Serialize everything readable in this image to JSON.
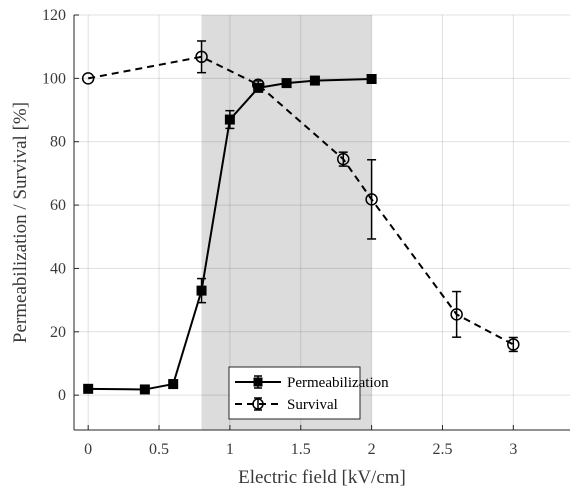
{
  "chart_data": {
    "type": "line",
    "xlabel": "Electric field [kV/cm]",
    "ylabel": "Permeabilization / Survival [%]",
    "xlim": [
      -0.1,
      3.4
    ],
    "ylim": [
      -11,
      120
    ],
    "x_ticks": [
      0,
      0.5,
      1,
      1.5,
      2,
      2.5,
      3
    ],
    "x_tick_labels": [
      "0",
      "0.5",
      "1",
      "1.5",
      "2",
      "2.5",
      "3"
    ],
    "y_ticks": [
      0,
      20,
      40,
      60,
      80,
      100,
      120
    ],
    "y_tick_labels": [
      "0",
      "20",
      "40",
      "60",
      "80",
      "100",
      "120"
    ],
    "grid": true,
    "shaded_region": {
      "x_from": 0.8,
      "x_to": 2.0,
      "color": "#dcdcdc"
    },
    "legend_placement": "bottom-center",
    "series": [
      {
        "name": "Permeabilization",
        "style": "solid",
        "marker": "square-filled",
        "color": "#000000",
        "x": [
          0,
          0.4,
          0.6,
          0.8,
          1.0,
          1.2,
          1.4,
          1.6,
          2.0
        ],
        "y": [
          2,
          1.8,
          3.5,
          33,
          87,
          97,
          98.5,
          99.3,
          99.8
        ],
        "err": [
          0.5,
          0.5,
          0.6,
          3.8,
          2.8,
          1.0,
          0.4,
          0.3,
          0.2
        ]
      },
      {
        "name": "Survival",
        "style": "dashed",
        "marker": "circle-open",
        "color": "#000000",
        "x": [
          0,
          0.8,
          1.2,
          1.8,
          2.0,
          2.6,
          3.0
        ],
        "y": [
          100,
          106.8,
          98,
          74.5,
          61.8,
          25.5,
          16
        ],
        "err": [
          0,
          5,
          1.2,
          2.2,
          12.5,
          7.2,
          2.2
        ]
      }
    ]
  }
}
